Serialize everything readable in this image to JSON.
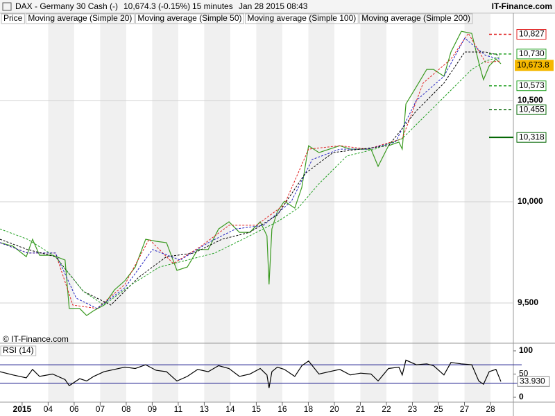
{
  "header": {
    "title": "DAX - Germany 30 Cash (-)",
    "quote": "10,674.3 (-0.15%)",
    "interval": "15 minutes",
    "timestamp": "Jan 28 2015 08:43",
    "source": "IT-Finance.com"
  },
  "chart_data": [
    {
      "type": "line",
      "annotation": "© IT-Finance.com",
      "xlim": [
        -0.85,
        18.88
      ],
      "xticks": [
        {
          "value": 0,
          "label": "2015"
        },
        {
          "value": 1,
          "label": "04"
        },
        {
          "value": 2,
          "label": "06"
        },
        {
          "value": 3,
          "label": "07"
        },
        {
          "value": 4,
          "label": "08"
        },
        {
          "value": 5,
          "label": "09"
        },
        {
          "value": 6,
          "label": "11"
        },
        {
          "value": 7,
          "label": "13"
        },
        {
          "value": 8,
          "label": "14"
        },
        {
          "value": 9,
          "label": "15"
        },
        {
          "value": 10,
          "label": "16"
        },
        {
          "value": 11,
          "label": "18"
        },
        {
          "value": 12,
          "label": "20"
        },
        {
          "value": 13,
          "label": "21"
        },
        {
          "value": 14,
          "label": "22"
        },
        {
          "value": 15,
          "label": "23"
        },
        {
          "value": 16,
          "label": "25"
        },
        {
          "value": 17,
          "label": "27"
        },
        {
          "value": 18,
          "label": "28"
        }
      ],
      "ylim": [
        9346,
        10870
      ],
      "yticks": [
        {
          "value": 9500,
          "label": "9,500"
        },
        {
          "value": 10000,
          "label": "10,000"
        },
        {
          "value": 10500,
          "label": "10,500"
        }
      ],
      "grid": true,
      "current": {
        "value": 10673.8,
        "label": "10,673.8",
        "color": "#f5b800"
      },
      "levels": [
        {
          "value": 10827,
          "label": "10,827",
          "color": "#e02020",
          "style": "dashed"
        },
        {
          "value": 10730,
          "label": "10,730",
          "color": "#22a022",
          "style": "dashed"
        },
        {
          "value": 10573,
          "label": "10,573",
          "color": "#22a022",
          "style": "dashed"
        },
        {
          "value": 10455,
          "label": "10,455",
          "color": "#006400",
          "style": "dashed"
        },
        {
          "value": 10318,
          "label": "10,318",
          "color": "#006400",
          "style": "solid"
        }
      ],
      "series": [
        {
          "name": "Price",
          "color": "#3a9a20",
          "style": "solid",
          "x": [
            -0.85,
            -0.35,
            0.16,
            0.4,
            0.67,
            1.17,
            1.65,
            1.81,
            2.21,
            2.48,
            2.75,
            3.15,
            3.55,
            3.95,
            4.35,
            4.75,
            5.15,
            5.55,
            5.95,
            6.35,
            6.75,
            7.15,
            7.55,
            7.95,
            8.35,
            8.75,
            9.15,
            9.41,
            9.49,
            9.6,
            9.81,
            10.08,
            10.48,
            10.75,
            11.01,
            11.41,
            11.81,
            12.21,
            12.61,
            13.01,
            13.41,
            13.68,
            14.08,
            14.48,
            14.61,
            14.75,
            15.15,
            15.55,
            15.81,
            16.21,
            16.48,
            16.88,
            17.28,
            17.55,
            17.73,
            17.95,
            18.21,
            18.4
          ],
          "values": [
            9798,
            9781,
            9729,
            9815,
            9736,
            9736,
            9712,
            9473,
            9473,
            9438,
            9462,
            9490,
            9565,
            9610,
            9678,
            9815,
            9805,
            9798,
            9661,
            9678,
            9764,
            9764,
            9866,
            9901,
            9849,
            9849,
            9901,
            9832,
            9592,
            9866,
            9952,
            10003,
            9969,
            10072,
            10277,
            10243,
            10260,
            10277,
            10260,
            10260,
            10260,
            10175,
            10277,
            10295,
            10260,
            10483,
            10568,
            10654,
            10654,
            10620,
            10740,
            10842,
            10832,
            10688,
            10603,
            10671,
            10705,
            10682
          ]
        },
        {
          "name": "Moving average (Simple 20)",
          "color": "#e02020",
          "style": "dashed",
          "x": [
            -0.85,
            0.21,
            1.28,
            1.95,
            2.88,
            3.95,
            4.88,
            5.81,
            6.88,
            7.95,
            9.01,
            10.08,
            11.01,
            12.21,
            13.28,
            14.61,
            15.41,
            16.48,
            17.15,
            17.81,
            18.35
          ],
          "values": [
            9798,
            9747,
            9747,
            9490,
            9473,
            9592,
            9815,
            9695,
            9781,
            9884,
            9884,
            9986,
            10260,
            10277,
            10260,
            10312,
            10586,
            10705,
            10832,
            10688,
            10695
          ]
        },
        {
          "name": "Moving average (Simple 50)",
          "color": "#2020c0",
          "style": "dashed",
          "x": [
            -0.85,
            0.21,
            1.28,
            2.08,
            2.88,
            3.95,
            5.01,
            6.08,
            7.15,
            8.21,
            9.28,
            10.35,
            11.15,
            12.21,
            13.28,
            14.35,
            15.15,
            16.21,
            17.01,
            17.81,
            18.35
          ],
          "values": [
            9798,
            9747,
            9747,
            9524,
            9473,
            9575,
            9764,
            9712,
            9798,
            9866,
            9884,
            10003,
            10209,
            10260,
            10260,
            10295,
            10500,
            10620,
            10808,
            10723,
            10705
          ]
        },
        {
          "name": "Moving average (Simple 100)",
          "color": "#000000",
          "style": "dashed",
          "x": [
            -0.85,
            0.21,
            1.28,
            2.35,
            3.41,
            4.48,
            5.55,
            6.61,
            7.68,
            8.75,
            9.81,
            10.88,
            11.95,
            13.01,
            14.08,
            15.15,
            16.21,
            17.01,
            17.81,
            18.35
          ],
          "values": [
            9815,
            9764,
            9729,
            9558,
            9490,
            9627,
            9729,
            9747,
            9815,
            9849,
            9935,
            10140,
            10243,
            10260,
            10277,
            10449,
            10586,
            10740,
            10740,
            10723
          ]
        },
        {
          "name": "Moving average (Simple 200)",
          "color": "#22a022",
          "style": "dashed",
          "x": [
            -0.85,
            0.21,
            1.28,
            2.35,
            3.15,
            4.21,
            5.28,
            6.35,
            7.41,
            8.48,
            9.81,
            10.61,
            11.41,
            12.48,
            13.55,
            14.61,
            15.68,
            16.48,
            17.28,
            17.81,
            18.35
          ],
          "values": [
            9866,
            9815,
            9729,
            9558,
            9490,
            9592,
            9678,
            9712,
            9747,
            9815,
            9901,
            9969,
            10089,
            10226,
            10260,
            10312,
            10449,
            10551,
            10654,
            10695,
            10716
          ]
        }
      ]
    },
    {
      "type": "line",
      "xlim": [
        -0.85,
        18.88
      ],
      "ylim": [
        0,
        100
      ],
      "yticks": [
        0,
        50,
        100
      ],
      "levels": [
        70,
        30
      ],
      "level_color": "#1a1a8c",
      "current": {
        "value": 33.93,
        "label": "33.930"
      },
      "series": [
        {
          "name": "RSI (14)",
          "color": "#000000",
          "style": "solid",
          "x": [
            -0.85,
            -0.35,
            0.16,
            0.4,
            0.67,
            1.17,
            1.65,
            1.81,
            2.21,
            2.48,
            2.75,
            3.15,
            3.55,
            3.95,
            4.35,
            4.75,
            5.15,
            5.55,
            5.95,
            6.35,
            6.75,
            7.15,
            7.55,
            7.95,
            8.35,
            8.75,
            9.15,
            9.41,
            9.49,
            9.6,
            9.81,
            10.08,
            10.48,
            10.75,
            11.01,
            11.41,
            11.81,
            12.21,
            12.61,
            13.01,
            13.41,
            13.68,
            14.08,
            14.48,
            14.61,
            14.75,
            15.15,
            15.55,
            15.81,
            16.21,
            16.48,
            16.88,
            17.28,
            17.55,
            17.73,
            17.95,
            18.21,
            18.4
          ],
          "values": [
            55,
            48,
            42,
            60,
            45,
            50,
            38,
            25,
            40,
            35,
            45,
            55,
            60,
            65,
            62,
            70,
            58,
            55,
            35,
            45,
            60,
            55,
            68,
            62,
            45,
            50,
            62,
            48,
            20,
            55,
            65,
            60,
            45,
            68,
            78,
            50,
            55,
            60,
            48,
            52,
            50,
            35,
            62,
            65,
            48,
            80,
            70,
            72,
            68,
            48,
            75,
            72,
            70,
            35,
            28,
            55,
            60,
            33.93
          ]
        }
      ]
    }
  ]
}
